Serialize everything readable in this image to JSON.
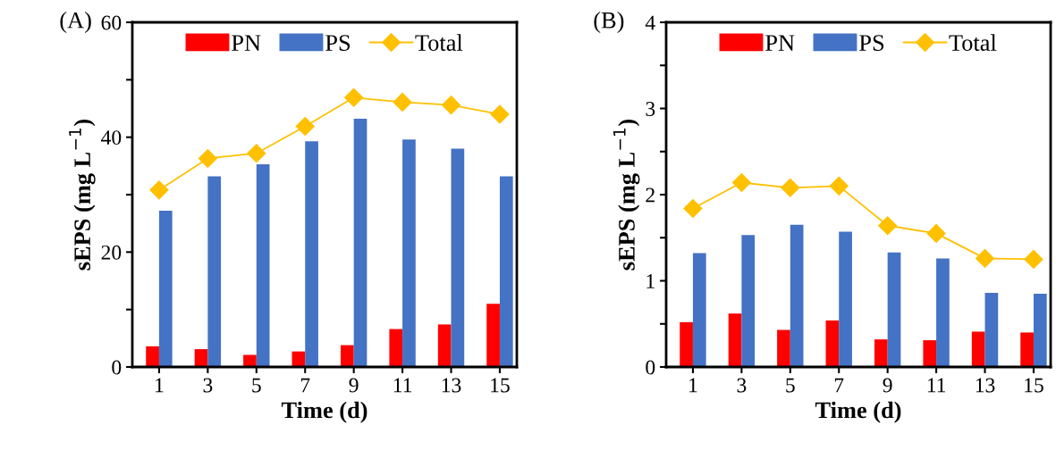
{
  "chart_data": [
    {
      "type": "bar",
      "title": "(A)",
      "xlabel": "Time (d)",
      "ylabel": "sEPS (mg L$^{−1}$)",
      "categories": [
        "1",
        "3",
        "5",
        "7",
        "9",
        "11",
        "13",
        "15"
      ],
      "series": [
        {
          "name": "PN",
          "color": "#ff0000",
          "values": [
            3.6,
            3.1,
            2.1,
            2.7,
            3.8,
            6.6,
            7.4,
            11.0
          ]
        },
        {
          "name": "PS",
          "color": "#4472c4",
          "values": [
            27.2,
            33.2,
            35.3,
            39.3,
            43.2,
            39.6,
            38.0,
            33.2
          ]
        },
        {
          "name": "Total",
          "type": "line",
          "color": "#ffc000",
          "marker": "diamond",
          "values": [
            30.8,
            36.3,
            37.2,
            41.9,
            46.9,
            46.1,
            45.6,
            44.0
          ]
        }
      ],
      "ylim": [
        0,
        60
      ],
      "yticks": [
        0,
        {
          "value": 10,
          "label": null
        },
        20,
        {
          "value": 30,
          "label": null
        },
        40,
        {
          "value": 50,
          "label": null
        },
        60
      ],
      "grid": false,
      "legend": "top"
    },
    {
      "type": "bar",
      "title": "(B)",
      "xlabel": "Time (d)",
      "ylabel": "sEPS (mg L$^{−1}$)",
      "categories": [
        "1",
        "3",
        "5",
        "7",
        "9",
        "11",
        "13",
        "15"
      ],
      "series": [
        {
          "name": "PN",
          "color": "#ff0000",
          "values": [
            0.52,
            0.62,
            0.43,
            0.54,
            0.32,
            0.31,
            0.41,
            0.4
          ]
        },
        {
          "name": "PS",
          "color": "#4472c4",
          "values": [
            1.32,
            1.53,
            1.65,
            1.57,
            1.33,
            1.26,
            0.86,
            0.85
          ]
        },
        {
          "name": "Total",
          "type": "line",
          "color": "#ffc000",
          "marker": "diamond",
          "values": [
            1.84,
            2.14,
            2.08,
            2.1,
            1.64,
            1.55,
            1.26,
            1.25
          ]
        }
      ],
      "ylim": [
        0,
        4
      ],
      "yticks": [
        0,
        {
          "value": 0.5,
          "label": null
        },
        1,
        {
          "value": 1.5,
          "label": null
        },
        2,
        {
          "value": 2.5,
          "label": null
        },
        3,
        {
          "value": 3.5,
          "label": null
        },
        4
      ],
      "grid": false,
      "legend": "top"
    }
  ]
}
